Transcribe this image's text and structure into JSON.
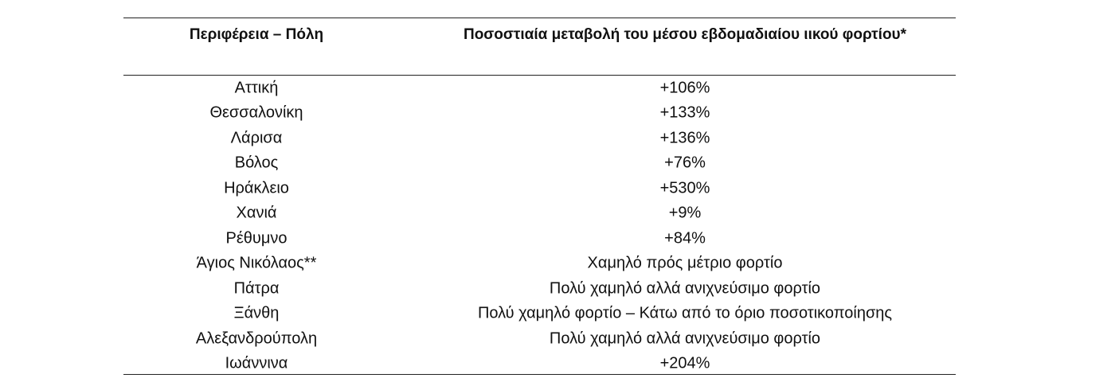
{
  "table": {
    "header": [
      "Περιφέρεια – Πόλη",
      "Ποσοστιαία μεταβολή του μέσου εβδομαδιαίου ιικού φορτίου*"
    ],
    "rows": [
      [
        "Αττική",
        "+106%"
      ],
      [
        "Θεσσαλονίκη",
        "+133%"
      ],
      [
        "Λάρισα",
        "+136%"
      ],
      [
        "Βόλος",
        "+76%"
      ],
      [
        "Ηράκλειο",
        "+530%"
      ],
      [
        "Χανιά",
        "+9%"
      ],
      [
        "Ρέθυμνο",
        "+84%"
      ],
      [
        "Άγιος Νικόλαος**",
        "Χαμηλό πρός μέτριο φορτίο"
      ],
      [
        "Πάτρα",
        "Πολύ χαμηλό αλλά ανιχνεύσιμο φορτίο"
      ],
      [
        "Ξάνθη",
        "Πολύ χαμηλό φορτίο – Κάτω από το όριο ποσοτικοποίησης"
      ],
      [
        "Αλεξανδρούπολη",
        "Πολύ χαμηλό αλλά ανιχνεύσιμο φορτίο"
      ],
      [
        "Ιωάννινα",
        "+204%"
      ]
    ]
  }
}
